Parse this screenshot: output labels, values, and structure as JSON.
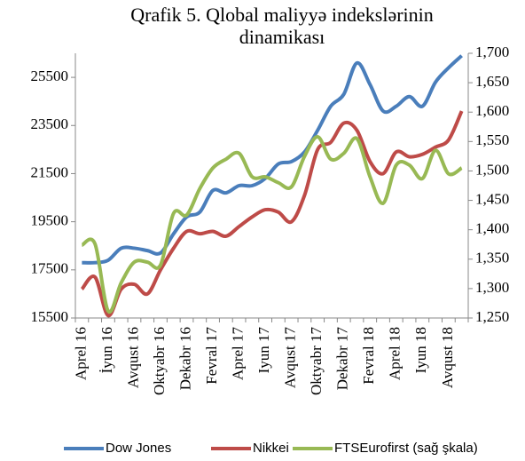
{
  "chart_data": {
    "type": "line",
    "title": "Qrafik 5. Qlobal maliyyə indekslərinin dinamikası",
    "categories": [
      "Aprel 16",
      null,
      "İyun 16",
      null,
      "Avqust 16",
      null,
      "Oktyabr 16",
      null,
      "Dekabr 16",
      null,
      "Fevral 17",
      null,
      "Aprel 17",
      null,
      "Iyun 17",
      null,
      "Avqust 17",
      null,
      "Oktyabr 17",
      null,
      "Dekabr 17",
      null,
      "Fevral 18",
      null,
      "Aprel 18",
      null,
      "Iyun 18",
      null,
      "Avqust 18",
      null
    ],
    "series": [
      {
        "name": "Dow Jones",
        "color": "#4a7ebb",
        "values": [
          17800,
          17800,
          17900,
          18400,
          18400,
          18300,
          18200,
          19000,
          19700,
          19900,
          20800,
          20700,
          21000,
          21000,
          21300,
          21900,
          22000,
          22400,
          23300,
          24300,
          24800,
          26100,
          25200,
          24100,
          24300,
          24700,
          24300,
          25300,
          25900,
          26400
        ]
      },
      {
        "name": "Nikkei",
        "color": "#be4b48",
        "values": [
          16700,
          17200,
          15600,
          16700,
          16900,
          16500,
          17500,
          18400,
          19100,
          19000,
          19100,
          18900,
          19300,
          19700,
          20000,
          19900,
          19500,
          20600,
          22500,
          22800,
          23600,
          23300,
          22000,
          21500,
          22400,
          22200,
          22300,
          22600,
          22900,
          24100
        ]
      },
      {
        "name": "FTSEurofirst (sağ şkala)",
        "color": "#98b954",
        "axis": "y2",
        "values": [
          1374,
          1376,
          1262,
          1310,
          1345,
          1345,
          1340,
          1428,
          1425,
          1470,
          1505,
          1520,
          1530,
          1490,
          1490,
          1480,
          1473,
          1525,
          1558,
          1520,
          1530,
          1555,
          1490,
          1445,
          1510,
          1510,
          1487,
          1535,
          1495,
          1505
        ]
      }
    ],
    "ylim": [
      15500,
      26500
    ],
    "yticks": [
      15500,
      17500,
      19500,
      21500,
      23500,
      25500
    ],
    "y2lim": [
      1250,
      1700
    ],
    "y2ticks": [
      {
        "value": 1250,
        "label": "1,250"
      },
      {
        "value": 1300,
        "label": "1,300"
      },
      {
        "value": 1350,
        "label": "1,350"
      },
      {
        "value": 1400,
        "label": "1,400"
      },
      {
        "value": 1450,
        "label": "1,450"
      },
      {
        "value": 1500,
        "label": "1,500"
      },
      {
        "value": 1550,
        "label": "1,550"
      },
      {
        "value": 1600,
        "label": "1,600"
      },
      {
        "value": 1650,
        "label": "1,650"
      },
      {
        "value": 1700,
        "label": "1,700"
      }
    ],
    "legend": "bottom",
    "grid": false
  }
}
